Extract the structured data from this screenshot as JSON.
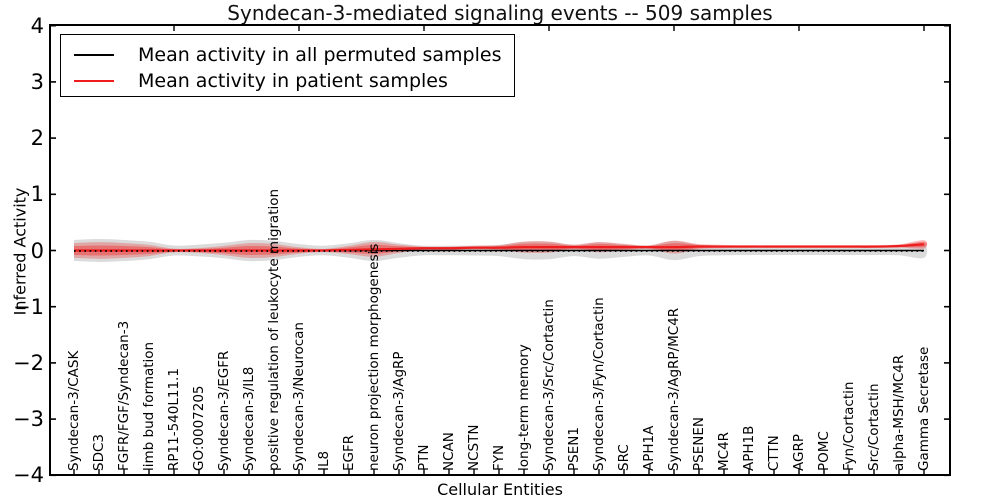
{
  "chart_data": {
    "type": "area",
    "title": "Syndecan-3-mediated signaling events -- 509 samples",
    "xlabel": "Cellular Entities",
    "ylabel": "Inferred Activity",
    "ylim": [
      -4,
      4
    ],
    "yticks": [
      4,
      3,
      2,
      1,
      0,
      -1,
      -2,
      -3,
      -4
    ],
    "grid": false,
    "legend_position": "upper left",
    "zero_line": {
      "value": 0,
      "style": "dotted",
      "color": "#000000"
    },
    "categories": [
      "Syndecan-3/CASK",
      "SDC3",
      "FGFR/FGF/Syndecan-3",
      "limb bud formation",
      "RP11-540L11.1",
      "GO:0007205",
      "Syndecan-3/EGFR",
      "Syndecan-3/IL8",
      "positive regulation of leukocyte migration",
      "Syndecan-3/Neurocan",
      "IL8",
      "EGFR",
      "neuron projection morphogenesis",
      "Syndecan-3/AgRP",
      "PTN",
      "NCAN",
      "NCSTN",
      "FYN",
      "long-term memory",
      "Syndecan-3/Src/Cortactin",
      "PSEN1",
      "Syndecan-3/Fyn/Cortactin",
      "SRC",
      "APH1A",
      "Syndecan-3/AgRP/MC4R",
      "PSENEN",
      "MC4R",
      "APH1B",
      "CTTN",
      "AGRP",
      "POMC",
      "Fyn/Cortactin",
      "Src/Cortactin",
      "alpha-MSH/MC4R",
      "Gamma Secretase"
    ],
    "series": [
      {
        "name": "Mean activity in all permuted samples",
        "color": "#000000",
        "mean": [
          0,
          0,
          0,
          0,
          0,
          0,
          0,
          0,
          0,
          0,
          0,
          0,
          0,
          0,
          0,
          0,
          0,
          0,
          0,
          0,
          0,
          0,
          0,
          0,
          0,
          0,
          0,
          0,
          0,
          0,
          0,
          0,
          0,
          0,
          0
        ],
        "band_halfwidth": [
          0.09,
          0.1,
          0.09,
          0.07,
          0.03,
          0.04,
          0.06,
          0.09,
          0.08,
          0.045,
          0.028,
          0.055,
          0.09,
          0.055,
          0.028,
          0.028,
          0.03,
          0.037,
          0.07,
          0.07,
          0.037,
          0.065,
          0.045,
          0.03,
          0.08,
          0.037,
          0.028,
          0.025,
          0.025,
          0.025,
          0.025,
          0.025,
          0.025,
          0.028,
          0.055
        ]
      },
      {
        "name": "Mean activity in patient samples",
        "color": "#ee1c1c",
        "mean": [
          0,
          0,
          0,
          0,
          0,
          0,
          0,
          0,
          0,
          0,
          0,
          0.01,
          0.02,
          0.03,
          0.04,
          0.04,
          0.05,
          0.05,
          0.06,
          0.06,
          0.06,
          0.06,
          0.06,
          0.06,
          0.06,
          0.07,
          0.07,
          0.07,
          0.07,
          0.07,
          0.07,
          0.07,
          0.07,
          0.08,
          0.11
        ],
        "band_halfwidth": [
          0.08,
          0.09,
          0.08,
          0.06,
          0.02,
          0.027,
          0.05,
          0.08,
          0.07,
          0.035,
          0.018,
          0.045,
          0.08,
          0.045,
          0.018,
          0.018,
          0.02,
          0.027,
          0.06,
          0.06,
          0.027,
          0.055,
          0.035,
          0.02,
          0.07,
          0.027,
          0.018,
          0.015,
          0.015,
          0.015,
          0.015,
          0.015,
          0.015,
          0.018,
          0.045
        ]
      }
    ]
  }
}
